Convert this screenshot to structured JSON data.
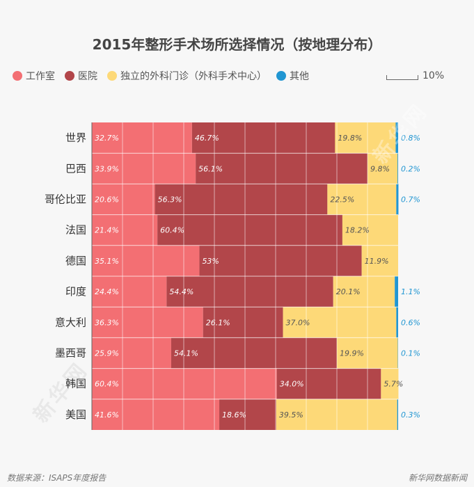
{
  "title": "2015年整形手术场所选择情况（按地理分布）",
  "legend": [
    {
      "label": "工作室",
      "color": "#f36f73"
    },
    {
      "label": "医院",
      "color": "#b2464a"
    },
    {
      "label": "独立的外科门诊（外科手术中心）",
      "color": "#fdd978"
    },
    {
      "label": "其他",
      "color": "#2196d2"
    }
  ],
  "scale_label": "10%",
  "watermark": "新华网",
  "footer": {
    "source": "数据来源：ISAPS年度报告",
    "brand": "新华网数据新闻"
  },
  "chart_data": {
    "type": "bar",
    "orientation": "horizontal",
    "stacked": true,
    "title": "2015年整形手术场所选择情况（按地理分布）",
    "xlim": [
      0,
      100
    ],
    "grid": true,
    "categories": [
      "世界",
      "巴西",
      "哥伦比亚",
      "法国",
      "德国",
      "印度",
      "意大利",
      "墨西哥",
      "韩国",
      "美国"
    ],
    "series": [
      {
        "name": "工作室",
        "color": "#f36f73",
        "label_color": "#ffffff",
        "values": [
          32.7,
          33.9,
          20.6,
          21.4,
          35.1,
          24.4,
          36.3,
          25.9,
          60.4,
          41.6
        ],
        "labels": [
          "32.7%",
          "33.9%",
          "20.6%",
          "21.4%",
          "35.1%",
          "24.4%",
          "36.3%",
          "25.9%",
          "60.4%",
          "41.6%"
        ]
      },
      {
        "name": "医院",
        "color": "#b2464a",
        "label_color": "#ffffff",
        "values": [
          46.7,
          56.1,
          56.3,
          60.4,
          53,
          54.4,
          26.1,
          54.1,
          34.0,
          18.6
        ],
        "labels": [
          "46.7%",
          "56.1%",
          "56.3%",
          "60.4%",
          "53%",
          "54.4%",
          "26.1%",
          "54.1%",
          "34.0%",
          "18.6%"
        ]
      },
      {
        "name": "独立的外科门诊（外科手术中心）",
        "color": "#fdd978",
        "label_color": "#555555",
        "values": [
          19.8,
          9.8,
          22.5,
          18.2,
          11.9,
          20.1,
          37.0,
          19.9,
          5.7,
          39.5
        ],
        "labels": [
          "19.8%",
          "9.8%",
          "22.5%",
          "18.2%",
          "11.9%",
          "20.1%",
          "37.0%",
          "19.9%",
          "5.7%",
          "39.5%"
        ]
      },
      {
        "name": "其他",
        "color": "#2196d2",
        "label_color": "#2196d2",
        "values": [
          0.8,
          0.2,
          0.7,
          0,
          0,
          1.1,
          0.6,
          0.1,
          0,
          0.3
        ],
        "labels": [
          "0.8%",
          "0.2%",
          "0.7%",
          "",
          "",
          "1.1%",
          "0.6%",
          "0.1%",
          "",
          "0.3%"
        ]
      }
    ]
  }
}
